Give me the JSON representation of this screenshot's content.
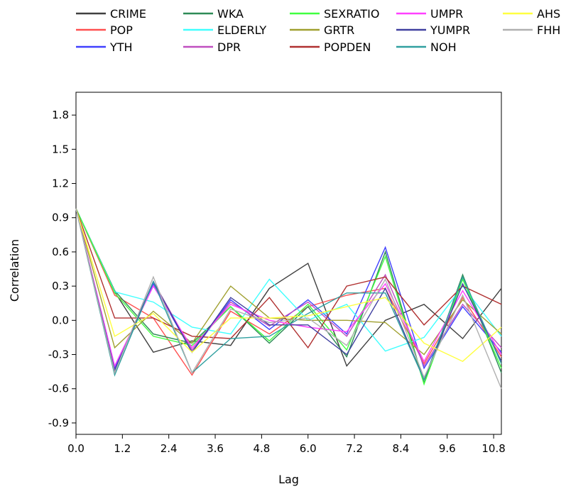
{
  "chart_data": {
    "type": "line",
    "title": "",
    "xlabel": "Lag",
    "ylabel": "Correlation",
    "xlim": [
      0,
      11
    ],
    "ylim": [
      -1.0,
      2.0
    ],
    "x_ticks": [
      "0.0",
      "1.2",
      "2.4",
      "3.6",
      "4.8",
      "6.0",
      "7.2",
      "8.4",
      "9.6",
      "10.8"
    ],
    "y_ticks": [
      "1.8",
      "1.5",
      "1.2",
      "0.9",
      "0.6",
      "0.3",
      "0.0",
      "-0.3",
      "-0.6",
      "-0.9"
    ],
    "grid": false,
    "legend_position": "top",
    "x": [
      0,
      1,
      2,
      3,
      4,
      5,
      6,
      7,
      8,
      9,
      10,
      11
    ],
    "series": [
      {
        "name": "CRIME",
        "color": "#404040",
        "values": [
          0.98,
          0.25,
          -0.28,
          -0.18,
          -0.22,
          0.28,
          0.5,
          -0.4,
          0.0,
          0.14,
          -0.16,
          0.28
        ]
      },
      {
        "name": "POP",
        "color": "#ff5050",
        "values": [
          0.98,
          0.22,
          0.02,
          -0.48,
          0.08,
          -0.12,
          0.12,
          0.22,
          0.28,
          -0.38,
          0.2,
          -0.32
        ]
      },
      {
        "name": "YTH",
        "color": "#4040ff",
        "values": [
          0.98,
          -0.42,
          0.32,
          -0.28,
          0.18,
          -0.08,
          0.18,
          -0.12,
          0.64,
          -0.42,
          0.12,
          -0.28
        ]
      },
      {
        "name": "WKA",
        "color": "#2e8b57",
        "values": [
          0.98,
          0.26,
          -0.12,
          -0.2,
          0.12,
          -0.2,
          0.12,
          -0.32,
          0.6,
          -0.55,
          0.4,
          -0.46
        ]
      },
      {
        "name": "ELDERLY",
        "color": "#40ffff",
        "values": [
          0.98,
          0.25,
          0.16,
          -0.06,
          -0.12,
          0.36,
          0.0,
          0.14,
          -0.27,
          -0.15,
          0.3,
          -0.14
        ]
      },
      {
        "name": "DPR",
        "color": "#c04fc0",
        "values": [
          0.98,
          -0.44,
          0.34,
          -0.26,
          0.16,
          -0.05,
          0.16,
          -0.14,
          0.4,
          -0.4,
          0.14,
          -0.24
        ]
      },
      {
        "name": "SEXRATIO",
        "color": "#40ff40",
        "values": [
          0.98,
          0.24,
          -0.14,
          -0.22,
          0.12,
          -0.18,
          0.14,
          -0.26,
          0.56,
          -0.56,
          0.36,
          -0.42
        ]
      },
      {
        "name": "GRTR",
        "color": "#a0a030",
        "values": [
          0.98,
          -0.24,
          0.08,
          -0.2,
          0.3,
          0.02,
          0.0,
          0.0,
          -0.02,
          -0.3,
          0.18,
          -0.12
        ]
      },
      {
        "name": "POPDEN",
        "color": "#b03030",
        "values": [
          0.98,
          0.02,
          0.02,
          -0.14,
          -0.16,
          0.2,
          -0.24,
          0.3,
          0.38,
          -0.04,
          0.3,
          0.14
        ]
      },
      {
        "name": "UMPR",
        "color": "#ff40ff",
        "values": [
          0.98,
          -0.4,
          0.3,
          -0.24,
          0.14,
          0.0,
          -0.06,
          -0.1,
          0.32,
          -0.36,
          0.26,
          -0.3
        ]
      },
      {
        "name": "YUMPR",
        "color": "#4040a0",
        "values": [
          0.98,
          -0.44,
          0.34,
          -0.28,
          0.2,
          -0.04,
          -0.04,
          -0.3,
          0.28,
          -0.52,
          0.32,
          -0.36
        ]
      },
      {
        "name": "NOH",
        "color": "#30a0a0",
        "values": [
          0.98,
          -0.48,
          0.34,
          -0.46,
          -0.16,
          -0.14,
          0.06,
          0.24,
          0.24,
          -0.52,
          0.38,
          -0.38
        ]
      },
      {
        "name": "AHS",
        "color": "#ffff40",
        "values": [
          0.98,
          -0.14,
          0.06,
          -0.28,
          0.02,
          0.02,
          0.04,
          0.12,
          0.2,
          -0.2,
          -0.36,
          -0.06
        ]
      },
      {
        "name": "FHH",
        "color": "#b0b0b0",
        "values": [
          0.98,
          -0.46,
          0.38,
          -0.46,
          0.1,
          -0.02,
          0.02,
          -0.22,
          0.36,
          -0.5,
          0.22,
          -0.6
        ]
      }
    ]
  }
}
